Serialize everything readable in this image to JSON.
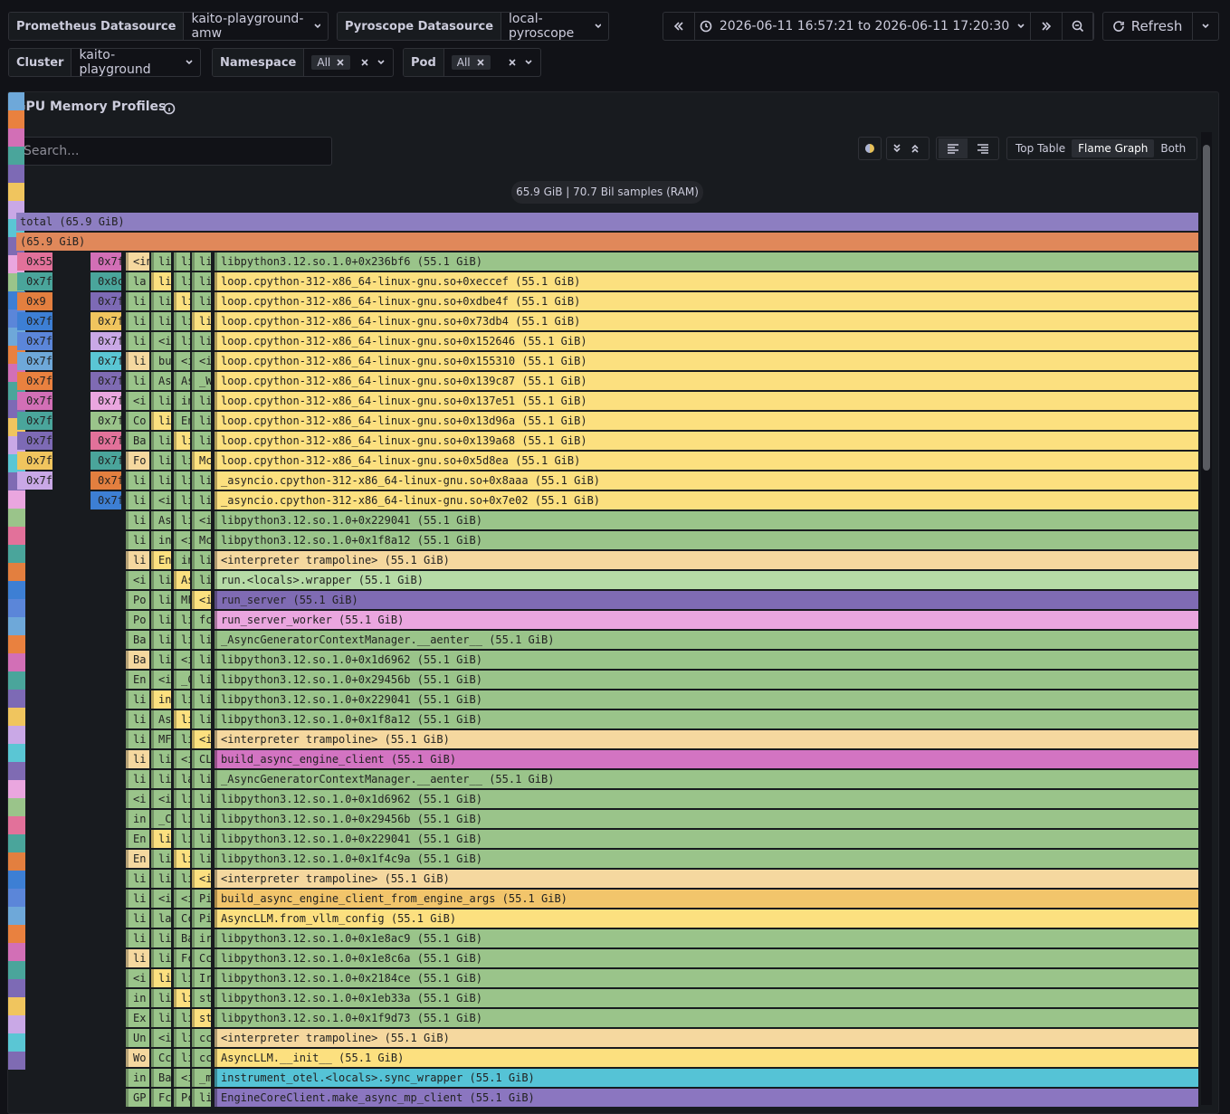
{
  "toolbar": {
    "datasources": [
      {
        "label": "Prometheus Datasource",
        "value": "kaito-playground-amw"
      },
      {
        "label": "Pyroscope Datasource",
        "value": "local-pyroscope"
      }
    ],
    "time_range": "2026-06-11 16:57:21 to 2026-06-11 17:20:30",
    "refresh": "Refresh"
  },
  "filters": {
    "cluster": {
      "label": "Cluster",
      "value": "kaito-playground"
    },
    "namespace": {
      "label": "Namespace",
      "chip": "All"
    },
    "pod": {
      "label": "Pod",
      "chip": "All"
    }
  },
  "panel": {
    "title": "GPU Memory Profiles",
    "search_placeholder": "Search...",
    "views": [
      "Top Table",
      "Flame Graph",
      "Both"
    ],
    "summary": "65.9 GiB | 70.7 Bil samples (RAM)"
  },
  "flame": {
    "total": "total (65.9 GiB)",
    "second": "(65.9 GiB)",
    "left_a": [
      "0x55",
      "0x7f",
      "0x9",
      "0x7f",
      "0x7f",
      "0x7f",
      "0x7f",
      "0x7f",
      "0x7f",
      "0x7f",
      "0x7f",
      "0x7f"
    ],
    "left_d": [
      "0x7f",
      "0x8c",
      "0x7f",
      "0x7f",
      "0x7f",
      "0x7f",
      "0x7f",
      "0x7f",
      "0x7f",
      "0x7f",
      "0x7f",
      "0x7f",
      "0x7f"
    ],
    "rows": [
      {
        "label": "libpython3.12.so.1.0+0x236bf6 (55.1 GiB)",
        "color": "#9ac48a",
        "side": [
          "<in",
          "li",
          "li",
          "li"
        ]
      },
      {
        "label": "loop.cpython-312-x86_64-linux-gnu.so+0xeccef (55.1 GiB)",
        "color": "#fce07f",
        "side": [
          "la",
          "li",
          "li",
          "li"
        ]
      },
      {
        "label": "loop.cpython-312-x86_64-linux-gnu.so+0xdbe4f (55.1 GiB)",
        "color": "#fce07f",
        "side": [
          "li",
          "li",
          "li",
          "li"
        ]
      },
      {
        "label": "loop.cpython-312-x86_64-linux-gnu.so+0x73db4 (55.1 GiB)",
        "color": "#fce07f",
        "side": [
          "li",
          "li",
          "li",
          "li"
        ]
      },
      {
        "label": "loop.cpython-312-x86_64-linux-gnu.so+0x152646 (55.1 GiB)",
        "color": "#fce07f",
        "side": [
          "li",
          "<i",
          "li",
          "li"
        ]
      },
      {
        "label": "loop.cpython-312-x86_64-linux-gnu.so+0x155310 (55.1 GiB)",
        "color": "#fce07f",
        "side": [
          "li",
          "bu",
          "<i",
          "<i"
        ]
      },
      {
        "label": "loop.cpython-312-x86_64-linux-gnu.so+0x139c87 (55.1 GiB)",
        "color": "#fce07f",
        "side": [
          "li",
          "As",
          "As",
          "_W"
        ]
      },
      {
        "label": "loop.cpython-312-x86_64-linux-gnu.so+0x137e51 (55.1 GiB)",
        "color": "#fce07f",
        "side": [
          "<i",
          "li",
          "in",
          "li"
        ]
      },
      {
        "label": "loop.cpython-312-x86_64-linux-gnu.so+0x13d96a (55.1 GiB)",
        "color": "#fce07f",
        "side": [
          "Co",
          "li",
          "En",
          "li"
        ]
      },
      {
        "label": "loop.cpython-312-x86_64-linux-gnu.so+0x139a68 (55.1 GiB)",
        "color": "#fce07f",
        "side": [
          "Ba",
          "li",
          "li",
          "li"
        ]
      },
      {
        "label": "loop.cpython-312-x86_64-linux-gnu.so+0x5d8ea (55.1 GiB)",
        "color": "#fce07f",
        "side": [
          "Fo",
          "li",
          "li",
          "Mc"
        ]
      },
      {
        "label": "_asyncio.cpython-312-x86_64-linux-gnu.so+0x8aaa (55.1 GiB)",
        "color": "#fce07f",
        "side": [
          "li",
          "li",
          "li",
          "li"
        ]
      },
      {
        "label": "_asyncio.cpython-312-x86_64-linux-gnu.so+0x7e02 (55.1 GiB)",
        "color": "#fce07f",
        "side": [
          "li",
          "<i",
          "li",
          "li"
        ]
      },
      {
        "label": "libpython3.12.so.1.0+0x229041 (55.1 GiB)",
        "color": "#9ac48a",
        "side": [
          "li",
          "As",
          "li",
          "<i"
        ]
      },
      {
        "label": "libpython3.12.so.1.0+0x1f8a12 (55.1 GiB)",
        "color": "#9ac48a",
        "side": [
          "li",
          "in",
          "<i",
          "Mc"
        ]
      },
      {
        "label": "<interpreter trampoline> (55.1 GiB)",
        "color": "#f5d89f",
        "side": [
          "li",
          "En",
          "in",
          "li"
        ]
      },
      {
        "label": "run.<locals>.wrapper (55.1 GiB)",
        "color": "#b6dba6",
        "side": [
          "<i",
          "li",
          "As",
          "li"
        ]
      },
      {
        "label": "run_server (55.1 GiB)",
        "color": "#7f6bb3",
        "side": [
          "Po",
          "li",
          "MF",
          "<i"
        ]
      },
      {
        "label": "run_server_worker (55.1 GiB)",
        "color": "#eaa6df",
        "side": [
          "Po",
          "li",
          "li",
          "fc"
        ]
      },
      {
        "label": "_AsyncGeneratorContextManager.__aenter__ (55.1 GiB)",
        "color": "#9ac48a",
        "side": [
          "Ba",
          "li",
          "li",
          "li"
        ]
      },
      {
        "label": "libpython3.12.so.1.0+0x1d6962 (55.1 GiB)",
        "color": "#9ac48a",
        "side": [
          "Ba",
          "li",
          "<i",
          "li"
        ]
      },
      {
        "label": "libpython3.12.so.1.0+0x29456b (55.1 GiB)",
        "color": "#9ac48a",
        "side": [
          "En",
          "<i",
          "_C",
          "li"
        ]
      },
      {
        "label": "libpython3.12.so.1.0+0x229041 (55.1 GiB)",
        "color": "#9ac48a",
        "side": [
          "li",
          "in",
          "li",
          "li"
        ]
      },
      {
        "label": "libpython3.12.so.1.0+0x1f8a12 (55.1 GiB)",
        "color": "#9ac48a",
        "side": [
          "li",
          "As",
          "li",
          "li"
        ]
      },
      {
        "label": "<interpreter trampoline> (55.1 GiB)",
        "color": "#f5d89f",
        "side": [
          "li",
          "MF",
          "li",
          "<i"
        ]
      },
      {
        "label": "build_async_engine_client (55.1 GiB)",
        "color": "#d374c2",
        "side": [
          "li",
          "li",
          "<i",
          "CL"
        ]
      },
      {
        "label": "_AsyncGeneratorContextManager.__aenter__ (55.1 GiB)",
        "color": "#9ac48a",
        "side": [
          "li",
          "li",
          "la",
          "li"
        ]
      },
      {
        "label": "libpython3.12.so.1.0+0x1d6962 (55.1 GiB)",
        "color": "#9ac48a",
        "side": [
          "<i",
          "<i",
          "li",
          "li"
        ]
      },
      {
        "label": "libpython3.12.so.1.0+0x29456b (55.1 GiB)",
        "color": "#9ac48a",
        "side": [
          "in",
          "_C",
          "li",
          "li"
        ]
      },
      {
        "label": "libpython3.12.so.1.0+0x229041 (55.1 GiB)",
        "color": "#9ac48a",
        "side": [
          "En",
          "li",
          "li",
          "li"
        ]
      },
      {
        "label": "libpython3.12.so.1.0+0x1f4c9a (55.1 GiB)",
        "color": "#9ac48a",
        "side": [
          "En",
          "li",
          "li",
          "li"
        ]
      },
      {
        "label": "<interpreter trampoline> (55.1 GiB)",
        "color": "#f5d89f",
        "side": [
          "li",
          "li",
          "li",
          "<i"
        ]
      },
      {
        "label": "build_async_engine_client_from_engine_args (55.1 GiB)",
        "color": "#f2c56b",
        "side": [
          "li",
          "<i",
          "<i",
          "Pi"
        ]
      },
      {
        "label": "AsyncLLM.from_vllm_config (55.1 GiB)",
        "color": "#fce07f",
        "side": [
          "li",
          "la",
          "Cc",
          "Pi"
        ]
      },
      {
        "label": "libpython3.12.so.1.0+0x1e8ac9 (55.1 GiB)",
        "color": "#9ac48a",
        "side": [
          "li",
          "li",
          "Ba",
          "ir"
        ]
      },
      {
        "label": "libpython3.12.so.1.0+0x1e8c6a (55.1 GiB)",
        "color": "#9ac48a",
        "side": [
          "li",
          "li",
          "Fc",
          "Cc"
        ]
      },
      {
        "label": "libpython3.12.so.1.0+0x2184ce (55.1 GiB)",
        "color": "#9ac48a",
        "side": [
          "<i",
          "li",
          "li",
          "Ir"
        ]
      },
      {
        "label": "libpython3.12.so.1.0+0x1eb33a (55.1 GiB)",
        "color": "#9ac48a",
        "side": [
          "in",
          "li",
          "li",
          "st"
        ]
      },
      {
        "label": "libpython3.12.so.1.0+0x1f9d73 (55.1 GiB)",
        "color": "#9ac48a",
        "side": [
          "Ex",
          "li",
          "li",
          "st"
        ]
      },
      {
        "label": "<interpreter trampoline> (55.1 GiB)",
        "color": "#f5d89f",
        "side": [
          "Un",
          "<i",
          "li",
          "cc"
        ]
      },
      {
        "label": "AsyncLLM.__init__ (55.1 GiB)",
        "color": "#fce07f",
        "side": [
          "Wo",
          "Cc",
          "li",
          "cc"
        ]
      },
      {
        "label": "instrument_otel.<locals>.sync_wrapper (55.1 GiB)",
        "color": "#55c3d6",
        "side": [
          "in",
          "Ba",
          "<i",
          "_m"
        ]
      },
      {
        "label": "EngineCoreClient.make_async_mp_client (55.1 GiB)",
        "color": "#8b76c0",
        "side": [
          "GP",
          "Fc",
          "Pc",
          "li"
        ]
      }
    ]
  }
}
